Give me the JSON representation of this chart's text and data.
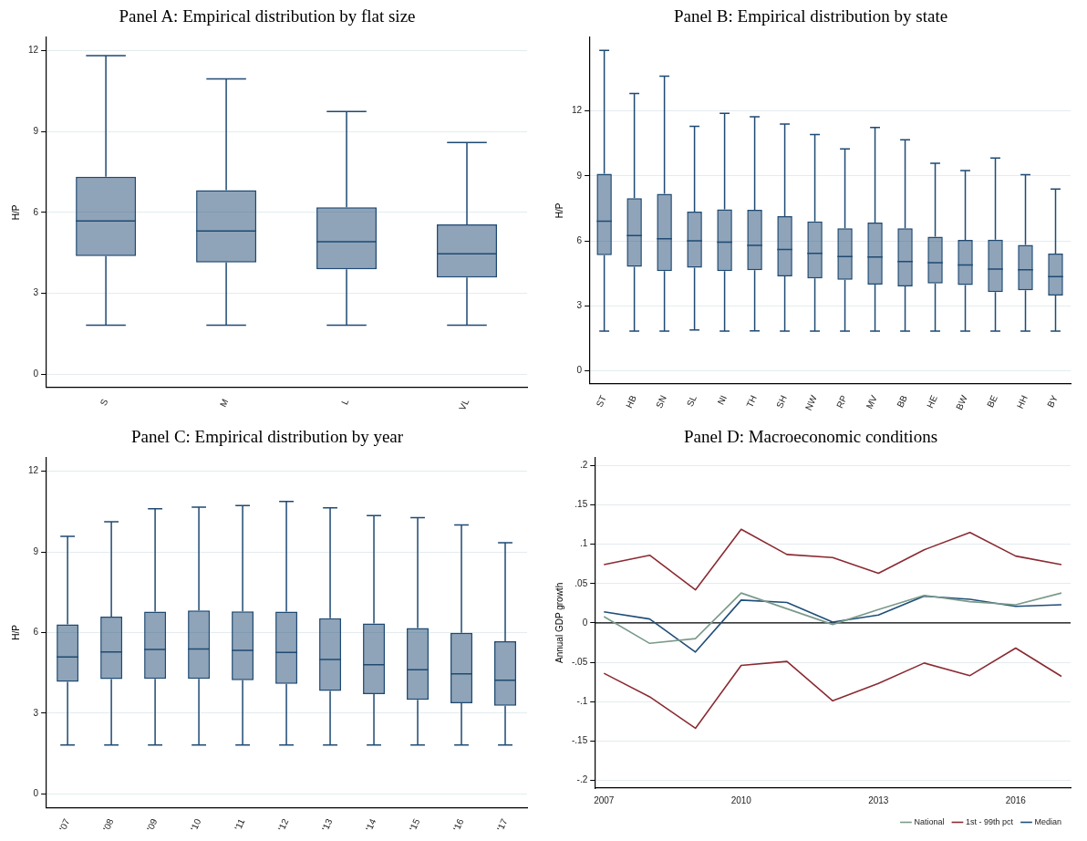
{
  "chart_data": [
    {
      "type": "box",
      "title": "Panel A: Empirical distribution by flat size",
      "ylabel": "H/P",
      "categories": [
        "S",
        "M",
        "L",
        "VL"
      ],
      "ylim": [
        -0.5,
        12.5
      ],
      "yticks": [
        0,
        3,
        6,
        9,
        12
      ],
      "grid": "y",
      "series": [
        {
          "color": "#1f4a73",
          "boxes": [
            {
              "low": 1.81,
              "q1": 4.38,
              "median": 5.68,
              "q3": 7.32,
              "high": 11.82
            },
            {
              "low": 1.81,
              "q1": 4.14,
              "median": 5.31,
              "q3": 6.82,
              "high": 10.95
            },
            {
              "low": 1.81,
              "q1": 3.89,
              "median": 4.91,
              "q3": 6.19,
              "high": 9.74
            },
            {
              "low": 1.81,
              "q1": 3.58,
              "median": 4.46,
              "q3": 5.55,
              "high": 8.59
            }
          ]
        }
      ]
    },
    {
      "type": "box",
      "title": "Panel B: Empirical distribution by state",
      "ylabel": "H/P",
      "categories": [
        "ST",
        "HB",
        "SN",
        "SL",
        "NI",
        "TH",
        "SH",
        "NW",
        "RP",
        "MV",
        "BB",
        "HE",
        "BW",
        "BE",
        "HH",
        "BY"
      ],
      "ylim": [
        -0.6,
        15.4
      ],
      "yticks": [
        0,
        3,
        6,
        9,
        12
      ],
      "grid": "y",
      "series": [
        {
          "color": "#1f4a73",
          "boxes": [
            {
              "low": 1.83,
              "q1": 5.34,
              "median": 6.91,
              "q3": 9.1,
              "high": 14.79
            },
            {
              "low": 1.83,
              "q1": 4.8,
              "median": 6.24,
              "q3": 7.97,
              "high": 12.8
            },
            {
              "low": 1.83,
              "q1": 4.6,
              "median": 6.1,
              "q3": 8.17,
              "high": 13.6
            },
            {
              "low": 1.89,
              "q1": 4.76,
              "median": 6.0,
              "q3": 7.35,
              "high": 11.29
            },
            {
              "low": 1.83,
              "q1": 4.6,
              "median": 5.94,
              "q3": 7.46,
              "high": 11.89
            },
            {
              "low": 1.85,
              "q1": 4.65,
              "median": 5.79,
              "q3": 7.43,
              "high": 11.73
            },
            {
              "low": 1.83,
              "q1": 4.36,
              "median": 5.6,
              "q3": 7.14,
              "high": 11.39
            },
            {
              "low": 1.83,
              "q1": 4.27,
              "median": 5.42,
              "q3": 6.9,
              "high": 10.91
            },
            {
              "low": 1.83,
              "q1": 4.2,
              "median": 5.28,
              "q3": 6.58,
              "high": 10.24
            },
            {
              "low": 1.83,
              "q1": 3.98,
              "median": 5.26,
              "q3": 6.85,
              "high": 11.23
            },
            {
              "low": 1.83,
              "q1": 3.9,
              "median": 5.04,
              "q3": 6.58,
              "high": 10.67
            },
            {
              "low": 1.83,
              "q1": 4.03,
              "median": 4.99,
              "q3": 6.19,
              "high": 9.58
            },
            {
              "low": 1.83,
              "q1": 3.96,
              "median": 4.89,
              "q3": 6.05,
              "high": 9.24
            },
            {
              "low": 1.83,
              "q1": 3.63,
              "median": 4.7,
              "q3": 6.06,
              "high": 9.82
            },
            {
              "low": 1.83,
              "q1": 3.72,
              "median": 4.67,
              "q3": 5.81,
              "high": 9.06
            },
            {
              "low": 1.83,
              "q1": 3.48,
              "median": 4.35,
              "q3": 5.41,
              "high": 8.39
            }
          ]
        }
      ]
    },
    {
      "type": "box",
      "title": "Panel C: Empirical distribution by year",
      "ylabel": "H/P",
      "categories": [
        "'07",
        "'08",
        "'09",
        "'10",
        "'11",
        "'12",
        "'13",
        "'14",
        "'15",
        "'16",
        "'17"
      ],
      "ylim": [
        -0.5,
        12.5
      ],
      "yticks": [
        0,
        3,
        6,
        9,
        12
      ],
      "grid": "y",
      "series": [
        {
          "color": "#1f4a73",
          "boxes": [
            {
              "low": 1.82,
              "q1": 4.17,
              "median": 5.09,
              "q3": 6.3,
              "high": 9.58
            },
            {
              "low": 1.82,
              "q1": 4.27,
              "median": 5.28,
              "q3": 6.59,
              "high": 10.12
            },
            {
              "low": 1.82,
              "q1": 4.28,
              "median": 5.37,
              "q3": 6.78,
              "high": 10.6
            },
            {
              "low": 1.82,
              "q1": 4.28,
              "median": 5.39,
              "q3": 6.82,
              "high": 10.66
            },
            {
              "low": 1.82,
              "q1": 4.23,
              "median": 5.34,
              "q3": 6.79,
              "high": 10.72
            },
            {
              "low": 1.82,
              "q1": 4.09,
              "median": 5.26,
              "q3": 6.78,
              "high": 10.87
            },
            {
              "low": 1.82,
              "q1": 3.83,
              "median": 5.0,
              "q3": 6.53,
              "high": 10.64
            },
            {
              "low": 1.82,
              "q1": 3.71,
              "median": 4.8,
              "q3": 6.34,
              "high": 10.35
            },
            {
              "low": 1.82,
              "q1": 3.5,
              "median": 4.62,
              "q3": 6.17,
              "high": 10.27
            },
            {
              "low": 1.82,
              "q1": 3.37,
              "median": 4.46,
              "q3": 5.99,
              "high": 10.0
            },
            {
              "low": 1.82,
              "q1": 3.28,
              "median": 4.23,
              "q3": 5.68,
              "high": 9.34
            }
          ]
        }
      ]
    },
    {
      "type": "line",
      "title": "Panel D: Macroeconomic conditions",
      "ylabel": "Annual GDP growth",
      "x": [
        2007,
        2008,
        2009,
        2010,
        2011,
        2012,
        2013,
        2014,
        2015,
        2016,
        2017
      ],
      "xlim": [
        2006.8,
        2017.2
      ],
      "xticks": [
        2007,
        2010,
        2013,
        2016
      ],
      "ylim": [
        -0.21,
        0.21
      ],
      "yticks": [
        {
          "value": -0.2,
          "label": "-.2"
        },
        {
          "value": -0.15,
          "label": "-.15"
        },
        {
          "value": -0.1,
          "label": "-.1"
        },
        {
          "value": -0.05,
          "label": "-.05"
        },
        0,
        {
          "value": 0.05,
          "label": ".05"
        },
        {
          "value": 0.1,
          "label": ".1"
        },
        {
          "value": 0.15,
          "label": ".15"
        },
        {
          "value": 0.2,
          "label": ".2"
        }
      ],
      "grid": "y",
      "legend": "bottom right",
      "marker": "none",
      "line_style": "solid",
      "ref_lines": [
        {
          "axis": "y",
          "value": 0,
          "color": "#000000"
        }
      ],
      "series": [
        {
          "name": "National",
          "color": "#7a9a8a",
          "values": [
            0.008,
            -0.026,
            -0.02,
            0.038,
            0.018,
            -0.002,
            0.017,
            0.035,
            0.027,
            0.023,
            0.038
          ]
        },
        {
          "name": "1st - 99th pct",
          "color": "#8b2a32",
          "values": [
            0.074,
            0.086,
            0.042,
            0.119,
            0.087,
            0.083,
            0.063,
            0.093,
            0.115,
            0.085,
            0.074
          ]
        },
        {
          "name": "Median",
          "color": "#1f4e79",
          "values": [
            0.014,
            0.005,
            -0.037,
            0.029,
            0.026,
            0.001,
            0.01,
            0.034,
            0.03,
            0.021,
            0.023
          ]
        },
        {
          "color": "#8b2a32",
          "values": [
            -0.064,
            -0.094,
            -0.134,
            -0.054,
            -0.049,
            -0.099,
            -0.077,
            -0.051,
            -0.067,
            -0.032,
            -0.068
          ]
        }
      ]
    }
  ]
}
